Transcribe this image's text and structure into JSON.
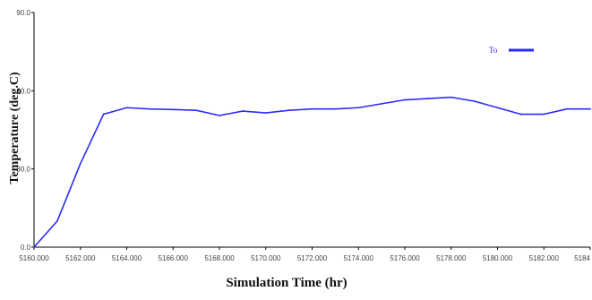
{
  "chart_data": {
    "type": "line",
    "xlabel": "Simulation Time (hr)",
    "ylabel": "Temperature (deg.C)",
    "xlim": [
      5160,
      5184
    ],
    "ylim": [
      0,
      90
    ],
    "x_tick_labels": [
      "5160.000",
      "5162.000",
      "5164.000",
      "5166.000",
      "5168.000",
      "5170.000",
      "5172.000",
      "5174.000",
      "5176.000",
      "5178.000",
      "5180.000",
      "5182.000",
      "5184"
    ],
    "y_tick_labels": [
      "0.0",
      "30.0",
      "60.0",
      "90.0"
    ],
    "grid": false,
    "legend_position": "top-right",
    "series": [
      {
        "name": "To",
        "color": "#2b2bff",
        "x": [
          5160,
          5161,
          5162,
          5163,
          5164,
          5165,
          5166,
          5167,
          5168,
          5169,
          5170,
          5171,
          5172,
          5173,
          5174,
          5175,
          5176,
          5177,
          5178,
          5179,
          5180,
          5181,
          5182,
          5183,
          5184
        ],
        "y": [
          0,
          10,
          32,
          51,
          53.5,
          53,
          52.8,
          52.5,
          50.5,
          52.2,
          51.5,
          52.5,
          53,
          53,
          53.5,
          55,
          56.5,
          57,
          57.5,
          56,
          53.5,
          51,
          51,
          53,
          53
        ]
      }
    ]
  }
}
